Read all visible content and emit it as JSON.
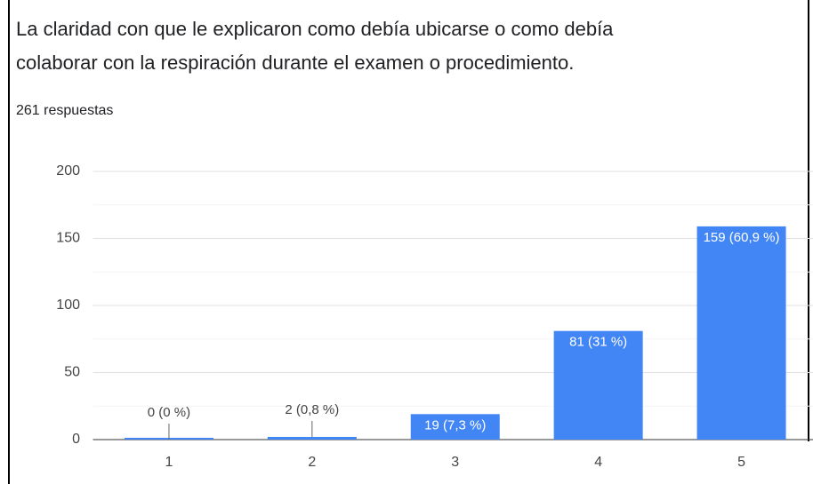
{
  "chart_data": {
    "type": "bar",
    "title": "La claridad con que le explicaron como debía ubicarse o como debía colaborar con la respiración durante el examen o procedimiento.",
    "subtitle": "261 respuestas",
    "categories": [
      "1",
      "2",
      "3",
      "4",
      "5"
    ],
    "values": [
      0,
      2,
      19,
      81,
      159
    ],
    "value_labels": [
      "0 (0 %)",
      "2 (0,8 %)",
      "19 (7,3 %)",
      "81 (31 %)",
      "159 (60,9 %)"
    ],
    "color": "#4285f4",
    "ylim": [
      0,
      200
    ],
    "yticks": [
      0,
      50,
      100,
      150,
      200
    ],
    "grid": true
  }
}
